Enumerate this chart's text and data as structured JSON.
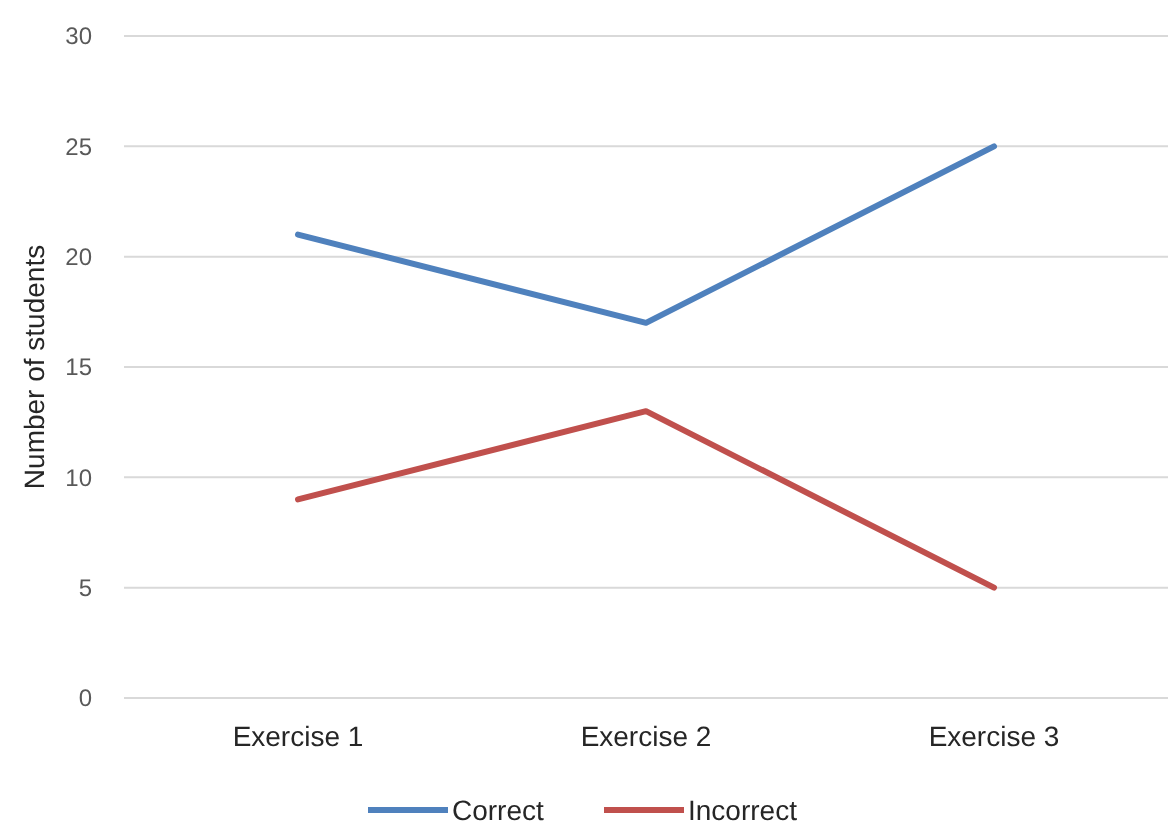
{
  "chart_data": {
    "type": "line",
    "ylabel": "Number of students",
    "categories": [
      "Exercise 1",
      "Exercise 2",
      "Exercise 3"
    ],
    "series": [
      {
        "name": "Correct",
        "color": "#4f81bd",
        "values": [
          21,
          17,
          25
        ]
      },
      {
        "name": "Incorrect",
        "color": "#c0504d",
        "values": [
          9,
          13,
          5
        ]
      }
    ],
    "ylim": [
      0,
      30
    ],
    "yticks": [
      0,
      5,
      10,
      15,
      20,
      25,
      30
    ],
    "grid": "y",
    "legend": "bottom",
    "marker": "none",
    "line_style": "solid"
  }
}
